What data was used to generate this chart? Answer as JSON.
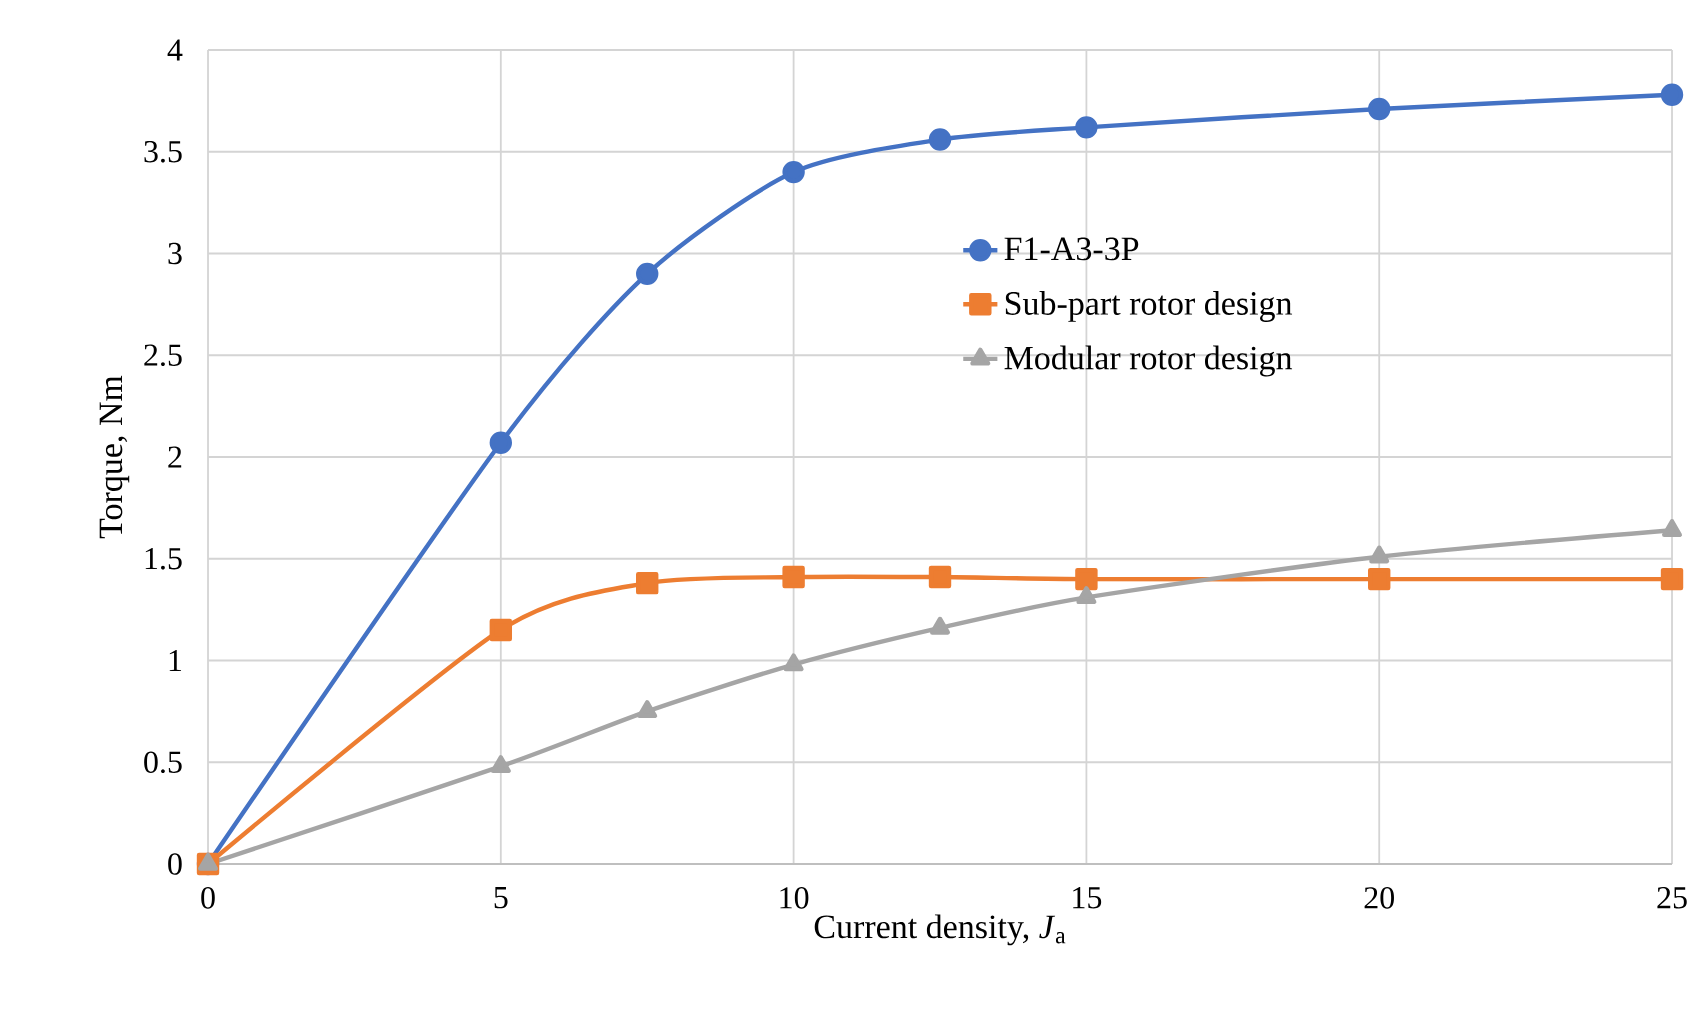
{
  "chart_data": {
    "type": "line",
    "xlabel": "Current density, *J*$_{a}$",
    "ylabel": "Torque, Nm",
    "x": [
      0,
      5,
      7.5,
      10,
      12.5,
      15,
      20,
      25
    ],
    "series": [
      {
        "name": "F1-A3-3P",
        "color": "#4472c4",
        "marker": "circle",
        "values": [
          0,
          2.07,
          2.9,
          3.4,
          3.56,
          3.62,
          3.71,
          3.78
        ]
      },
      {
        "name": "Sub-part rotor design",
        "color": "#ed7d31",
        "marker": "square",
        "values": [
          0,
          1.15,
          1.38,
          1.41,
          1.41,
          1.4,
          1.4,
          1.4
        ]
      },
      {
        "name": "Modular rotor design",
        "color": "#a5a5a5",
        "marker": "triangle",
        "values": [
          0,
          0.48,
          0.75,
          0.98,
          1.16,
          1.31,
          1.51,
          1.64
        ]
      }
    ],
    "xlim": [
      0,
      25
    ],
    "xticks": [
      0,
      5,
      10,
      15,
      20,
      25
    ],
    "ylim": [
      0,
      4
    ],
    "yticks": [
      0,
      0.5,
      1,
      1.5,
      2,
      2.5,
      3,
      3.5,
      4
    ],
    "grid": true,
    "legend": "right"
  }
}
